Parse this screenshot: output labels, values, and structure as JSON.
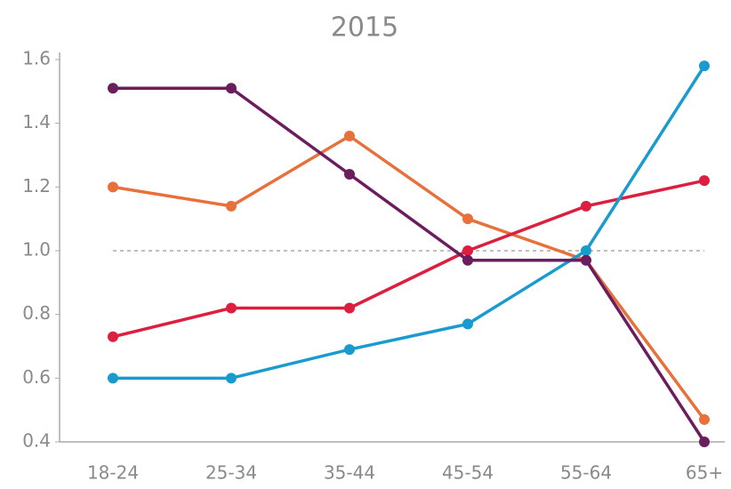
{
  "chart_data": {
    "type": "line",
    "title": "2015",
    "categories": [
      "18-24",
      "25-34",
      "35-44",
      "45-54",
      "55-64",
      "65+"
    ],
    "series": [
      {
        "color": "#e8703a",
        "values": [
          1.2,
          1.14,
          1.36,
          1.1,
          0.97,
          0.47
        ]
      },
      {
        "color": "#dc1f3e",
        "values": [
          0.73,
          0.82,
          0.82,
          1.0,
          1.14,
          1.22
        ]
      },
      {
        "color": "#1a9bd0",
        "values": [
          0.6,
          0.6,
          0.69,
          0.77,
          1.0,
          1.58
        ]
      },
      {
        "color": "#6b1d5e",
        "values": [
          1.51,
          1.51,
          1.24,
          0.97,
          0.97,
          0.4
        ]
      }
    ],
    "ylim": [
      0.4,
      1.6
    ],
    "yticks": [
      0.4,
      0.6,
      0.8,
      {
        "value": 1,
        "label": "1.0"
      },
      1.2,
      1.4,
      1.6
    ],
    "reference_line": 1
  }
}
